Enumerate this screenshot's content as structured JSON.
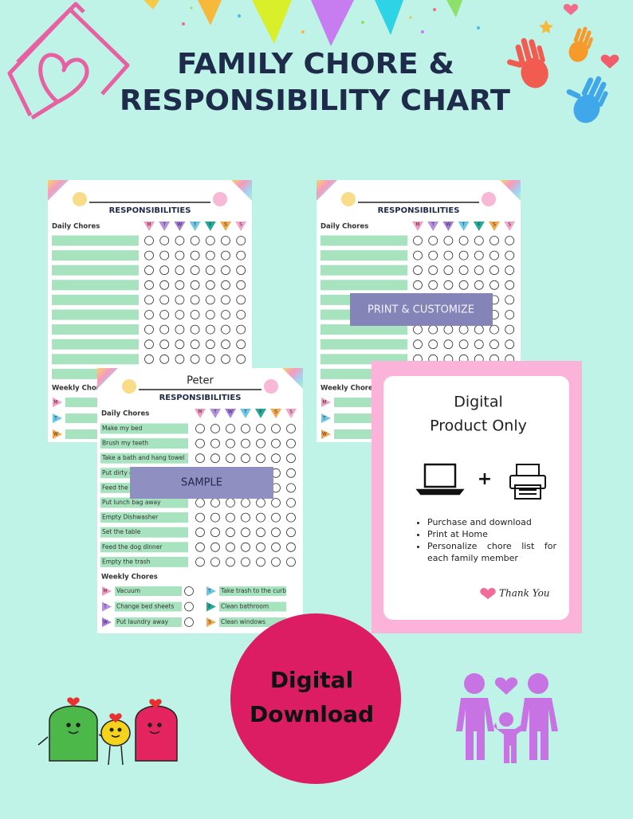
{
  "header": {
    "title_line1": "FAMILY CHORE &",
    "title_line2": "RESPONSIBILITY CHART"
  },
  "sheets": [
    {
      "heading": "RESPONSIBILITIES",
      "daily_label": "Daily Chores",
      "days": [
        "M",
        "T",
        "W",
        "T",
        "F",
        "S",
        "S"
      ],
      "weekly_label": "Weekly Chores",
      "weekly_days": [
        "M",
        "T",
        "W"
      ]
    },
    {
      "heading": "RESPONSIBILITIES",
      "daily_label": "Daily Chores",
      "days": [
        "M",
        "T",
        "W",
        "T",
        "F",
        "S",
        "S"
      ],
      "weekly_label": "Weekly Chores",
      "weekly_days": [
        "M",
        "T",
        "W"
      ],
      "overlay": "PRINT & CUSTOMIZE"
    }
  ],
  "sample": {
    "name": "Peter",
    "heading": "RESPONSIBILITIES",
    "daily_label": "Daily Chores",
    "days": [
      "M",
      "T",
      "W",
      "T",
      "F",
      "S",
      "S"
    ],
    "daily_chores": [
      "Make my bed",
      "Brush my teeth",
      "Take a bath and hang towel",
      "Put dirty c",
      "Feed the c",
      "Put lunch bag away",
      "Empty Dishwasher",
      "Set the table",
      "Feed the dog dinner",
      "Empty the trash"
    ],
    "weekly_label": "Weekly Chores",
    "weekly_chores": [
      {
        "day": "M",
        "task": "Vacuum"
      },
      {
        "day": "T",
        "task": "Change bed sheets"
      },
      {
        "day": "W",
        "task": "Put laundry away"
      },
      {
        "day": "T",
        "task": "Take trash to the curb"
      },
      {
        "day": "F",
        "task": "Clean bathroom"
      },
      {
        "day": "S",
        "task": "Clean windows"
      }
    ],
    "overlay": "SAMPLE"
  },
  "product_card": {
    "title_line1": "Digital",
    "title_line2": "Product Only",
    "plus": "+",
    "bullets": [
      "Purchase and download",
      "Print at Home",
      "Personalize chore list for each family member"
    ],
    "thank_you": "Thank You"
  },
  "badge": {
    "line1": "Digital",
    "line2": "Download"
  }
}
